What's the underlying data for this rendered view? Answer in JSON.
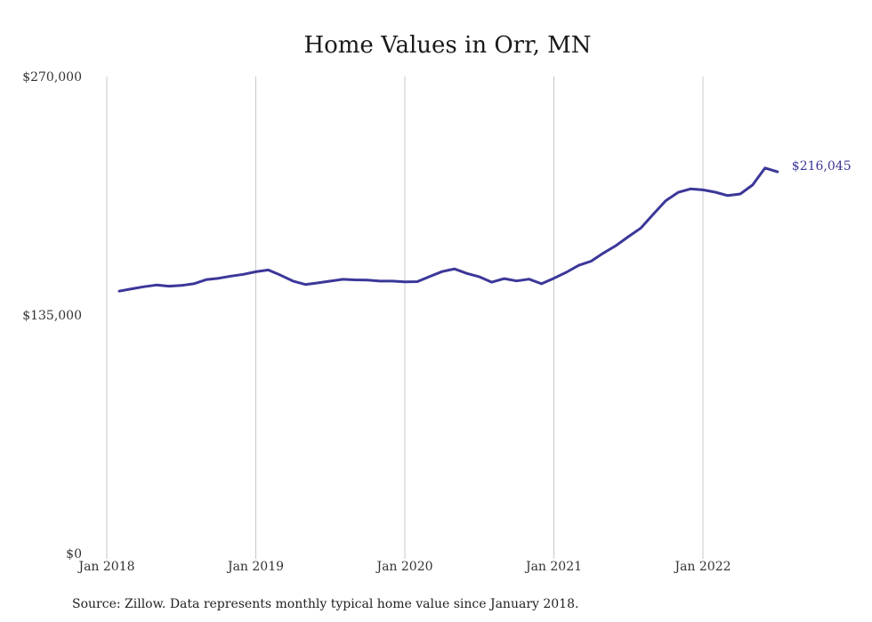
{
  "chart_data": {
    "type": "line",
    "title": "Home Values in Orr, MN",
    "source": "Source: Zillow. Data represents monthly typical home value since January 2018.",
    "ylim": [
      0,
      270000
    ],
    "y_ticks": [
      {
        "value": 0,
        "label": "$0"
      },
      {
        "value": 135000,
        "label": "$135,000"
      },
      {
        "value": 270000,
        "label": "$270,000"
      }
    ],
    "x_ticks": [
      {
        "date": "2018-01",
        "label": "Jan 2018"
      },
      {
        "date": "2019-01",
        "label": "Jan 2019"
      },
      {
        "date": "2020-01",
        "label": "Jan 2020"
      },
      {
        "date": "2021-01",
        "label": "Jan 2021"
      },
      {
        "date": "2022-01",
        "label": "Jan 2022"
      }
    ],
    "grid": "vertical",
    "end_label": "$216,045",
    "color": "#3b3799",
    "series": [
      {
        "x": [
          "2018-02",
          "2018-03",
          "2018-04",
          "2018-05",
          "2018-06",
          "2018-07",
          "2018-08",
          "2018-09",
          "2018-10",
          "2018-11",
          "2018-12",
          "2019-01",
          "2019-02",
          "2019-03",
          "2019-04",
          "2019-05",
          "2019-06",
          "2019-07",
          "2019-08",
          "2019-09",
          "2019-10",
          "2019-11",
          "2019-12",
          "2020-01",
          "2020-02",
          "2020-03",
          "2020-04",
          "2020-05",
          "2020-06",
          "2020-07",
          "2020-08",
          "2020-09",
          "2020-10",
          "2020-11",
          "2020-12",
          "2021-01",
          "2021-02",
          "2021-03",
          "2021-04",
          "2021-05",
          "2021-06",
          "2021-07",
          "2021-08",
          "2021-09",
          "2021-10",
          "2021-11",
          "2021-12",
          "2022-01",
          "2022-02",
          "2022-03",
          "2022-04",
          "2022-05",
          "2022-06",
          "2022-07"
        ],
        "values": [
          148500,
          149800,
          151000,
          152000,
          151300,
          151700,
          152700,
          155000,
          155800,
          157000,
          158000,
          159500,
          160500,
          157500,
          154200,
          152300,
          153200,
          154200,
          155200,
          154900,
          154800,
          154200,
          154200,
          153800,
          153900,
          156800,
          159600,
          161100,
          158500,
          156600,
          153600,
          155600,
          154300,
          155300,
          152700,
          155800,
          159200,
          163100,
          165500,
          170100,
          174300,
          179400,
          184200,
          192000,
          199700,
          204400,
          206400,
          205800,
          204500,
          202600,
          203500,
          208600,
          218200,
          216045
        ]
      }
    ]
  }
}
